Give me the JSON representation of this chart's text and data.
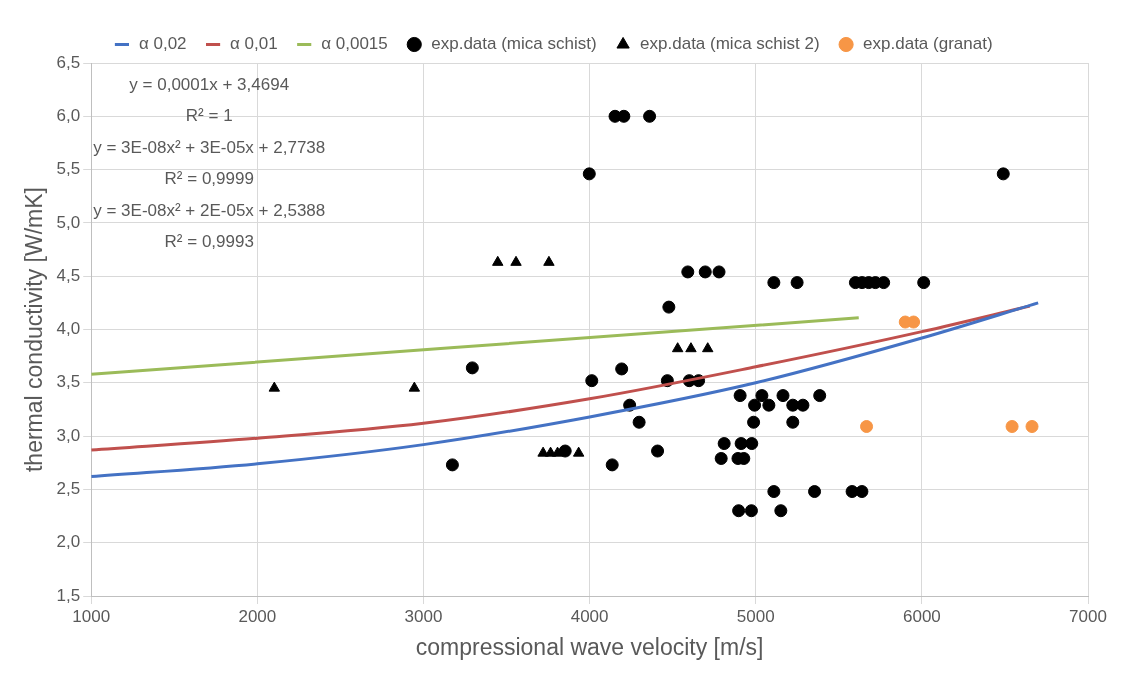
{
  "chart_data": {
    "type": "scatter",
    "xlabel": "compressional wave velocity [m/s]",
    "ylabel": "thermal conductivity [W/mK]",
    "xlim": [
      1000,
      7000
    ],
    "xticks": [
      1000,
      2000,
      3000,
      4000,
      5000,
      6000,
      7000
    ],
    "ylim": [
      1.5,
      6.5
    ],
    "yticks": [
      {
        "value": 1.5,
        "label": "1,5"
      },
      {
        "value": 2,
        "label": "2,0"
      },
      {
        "value": 2.5,
        "label": "2,5"
      },
      {
        "value": 3,
        "label": "3,0"
      },
      {
        "value": 3.5,
        "label": "3,5"
      },
      {
        "value": 4,
        "label": "4,0"
      },
      {
        "value": 4.5,
        "label": "4,5"
      },
      {
        "value": 5,
        "label": "5,0"
      },
      {
        "value": 5.5,
        "label": "5,5"
      },
      {
        "value": 6,
        "label": "6,0"
      },
      {
        "value": 6.5,
        "label": "6,5"
      }
    ],
    "grid": true,
    "legend": "top",
    "annotations": [
      "y = 0,0001x + 3,4694",
      "R² = 1",
      "y = 3E-08x² + 3E-05x + 2,7738",
      "R² = 0,9999",
      "y = 3E-08x² + 2E-05x + 2,5388",
      "R² = 0,9993"
    ],
    "series": [
      {
        "name": "α 0,02",
        "type": "line",
        "color": "#4472c4",
        "marker": "none",
        "x": [
          1000,
          2000,
          3000,
          4000,
          5000,
          6000,
          6700
        ],
        "values": [
          2.62,
          2.74,
          2.92,
          3.18,
          3.5,
          3.92,
          4.25
        ]
      },
      {
        "name": "α 0,01",
        "type": "line",
        "color": "#c0504d",
        "marker": "none",
        "x": [
          1000,
          2000,
          3000,
          4000,
          5000,
          6000,
          6650
        ],
        "values": [
          2.87,
          2.98,
          3.12,
          3.35,
          3.65,
          3.98,
          4.22
        ]
      },
      {
        "name": "α 0,0015",
        "type": "line",
        "color": "#9bbb59",
        "marker": "none",
        "x": [
          1000,
          5620
        ],
        "values": [
          3.58,
          4.11
        ]
      },
      {
        "name": "exp.data (mica schist)",
        "type": "scatter",
        "color": "#000000",
        "marker": "circle",
        "x": [
          4153,
          4206,
          4361,
          3998,
          6490,
          4591,
          4696,
          4779,
          5109,
          5249,
          5600,
          5640,
          5680,
          5720,
          5770,
          6011,
          4477,
          4013,
          4193,
          4468,
          4600,
          4656,
          4241,
          4298,
          4906,
          5037,
          4993,
          5079,
          5164,
          5223,
          5284,
          5385,
          4987,
          5223,
          4810,
          4912,
          4976,
          4792,
          4893,
          4928,
          4136,
          4383,
          4409,
          3853,
          5109,
          5354,
          5580,
          5639,
          4897,
          4974,
          5151,
          3294,
          3174
        ],
        "values": [
          6.0,
          6.0,
          6.0,
          5.46,
          5.46,
          4.54,
          4.54,
          4.54,
          4.44,
          4.44,
          4.44,
          4.44,
          4.44,
          4.44,
          4.44,
          4.44,
          4.21,
          3.52,
          3.63,
          3.52,
          3.52,
          3.52,
          3.29,
          3.13,
          3.38,
          3.38,
          3.29,
          3.29,
          3.38,
          3.29,
          3.29,
          3.38,
          3.13,
          3.13,
          2.93,
          2.93,
          2.93,
          2.79,
          2.79,
          2.79,
          2.73,
          null,
          2.86,
          2.86,
          2.48,
          2.48,
          2.48,
          2.48,
          2.3,
          2.3,
          2.3,
          3.64,
          2.73
        ]
      },
      {
        "name": "exp.data (mica schist 2)",
        "type": "scatter",
        "color": "#000000",
        "marker": "triangle",
        "x": [
          2102,
          2945,
          3447,
          3557,
          3755,
          4530,
          4610,
          4711,
          3720,
          3765,
          3807,
          3934
        ],
        "values": [
          3.45,
          3.45,
          4.63,
          4.63,
          4.63,
          3.82,
          3.82,
          3.82,
          2.84,
          2.84,
          2.84,
          2.84
        ]
      },
      {
        "name": "exp.data (granat)",
        "type": "scatter",
        "color": "#f79646",
        "marker": "circle",
        "x": [
          5667,
          6543,
          6663,
          5900,
          5950
        ],
        "values": [
          3.09,
          3.09,
          3.09,
          4.07,
          4.07
        ]
      }
    ]
  }
}
